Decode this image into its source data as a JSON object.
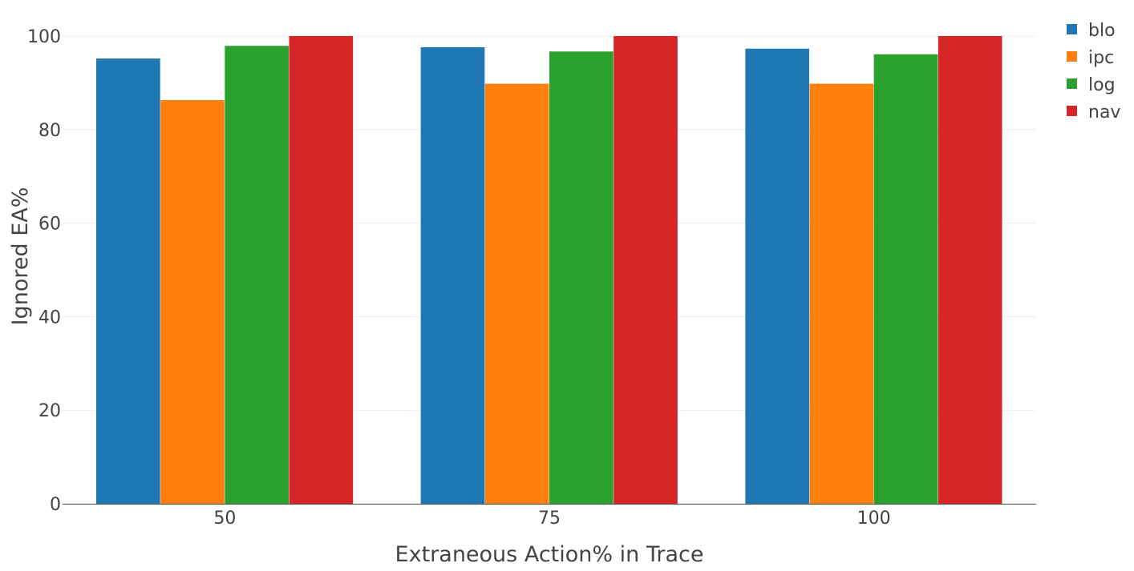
{
  "chart_data": {
    "type": "bar",
    "title": "",
    "xlabel": "Extraneous Action% in Trace",
    "ylabel": "Ignored EA%",
    "categories": [
      "50",
      "75",
      "100"
    ],
    "ylim": [
      0,
      100
    ],
    "yticks": [
      "0",
      "20",
      "40",
      "60",
      "80",
      "100"
    ],
    "grid": true,
    "legend_position": "top-right",
    "series": [
      {
        "name": "blo",
        "color": "#1f77b4",
        "values": [
          95.2,
          97.6,
          97.3
        ]
      },
      {
        "name": "ipc",
        "color": "#ff7f0e",
        "values": [
          86.3,
          89.8,
          89.8
        ]
      },
      {
        "name": "log",
        "color": "#2ca02c",
        "values": [
          97.9,
          96.7,
          96.1
        ]
      },
      {
        "name": "nav",
        "color": "#d62728",
        "values": [
          100,
          100,
          100
        ]
      }
    ]
  }
}
